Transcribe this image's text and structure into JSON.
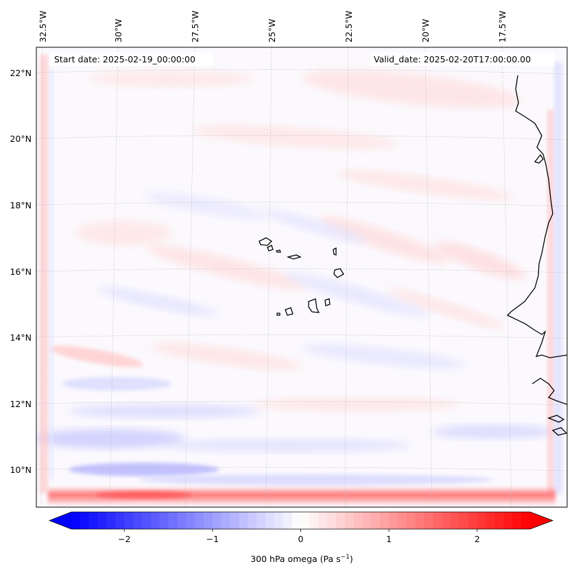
{
  "map": {
    "top_lon_labels": [
      "32.5°W",
      "30°W",
      "27.5°W",
      "25°W",
      "22.5°W",
      "20°W",
      "17.5°W"
    ],
    "left_lat_labels": [
      "22°N",
      "20°N",
      "18°N",
      "16°N",
      "14°N",
      "12°N",
      "10°N"
    ],
    "start_date": "Start date: 2025-02-19_00:00:00",
    "valid_date": "Valid_date: 2025-02-20T17:00:00.00",
    "gridlines": true,
    "coastline_color": "#000000"
  },
  "colorbar": {
    "ticks": [
      "−2",
      "−1",
      "0",
      "1",
      "2"
    ],
    "tick_values": [
      -2,
      -1,
      0,
      1,
      2
    ],
    "range": [
      -2.6,
      2.6
    ],
    "label_prefix": "300 hPa omega (Pa s",
    "label_exp": "−1",
    "label_suffix": ")",
    "cmap": "bwr",
    "low_color": "#0000ff",
    "mid_color": "#ffffff",
    "high_color": "#ff0000",
    "extend": "both"
  }
}
